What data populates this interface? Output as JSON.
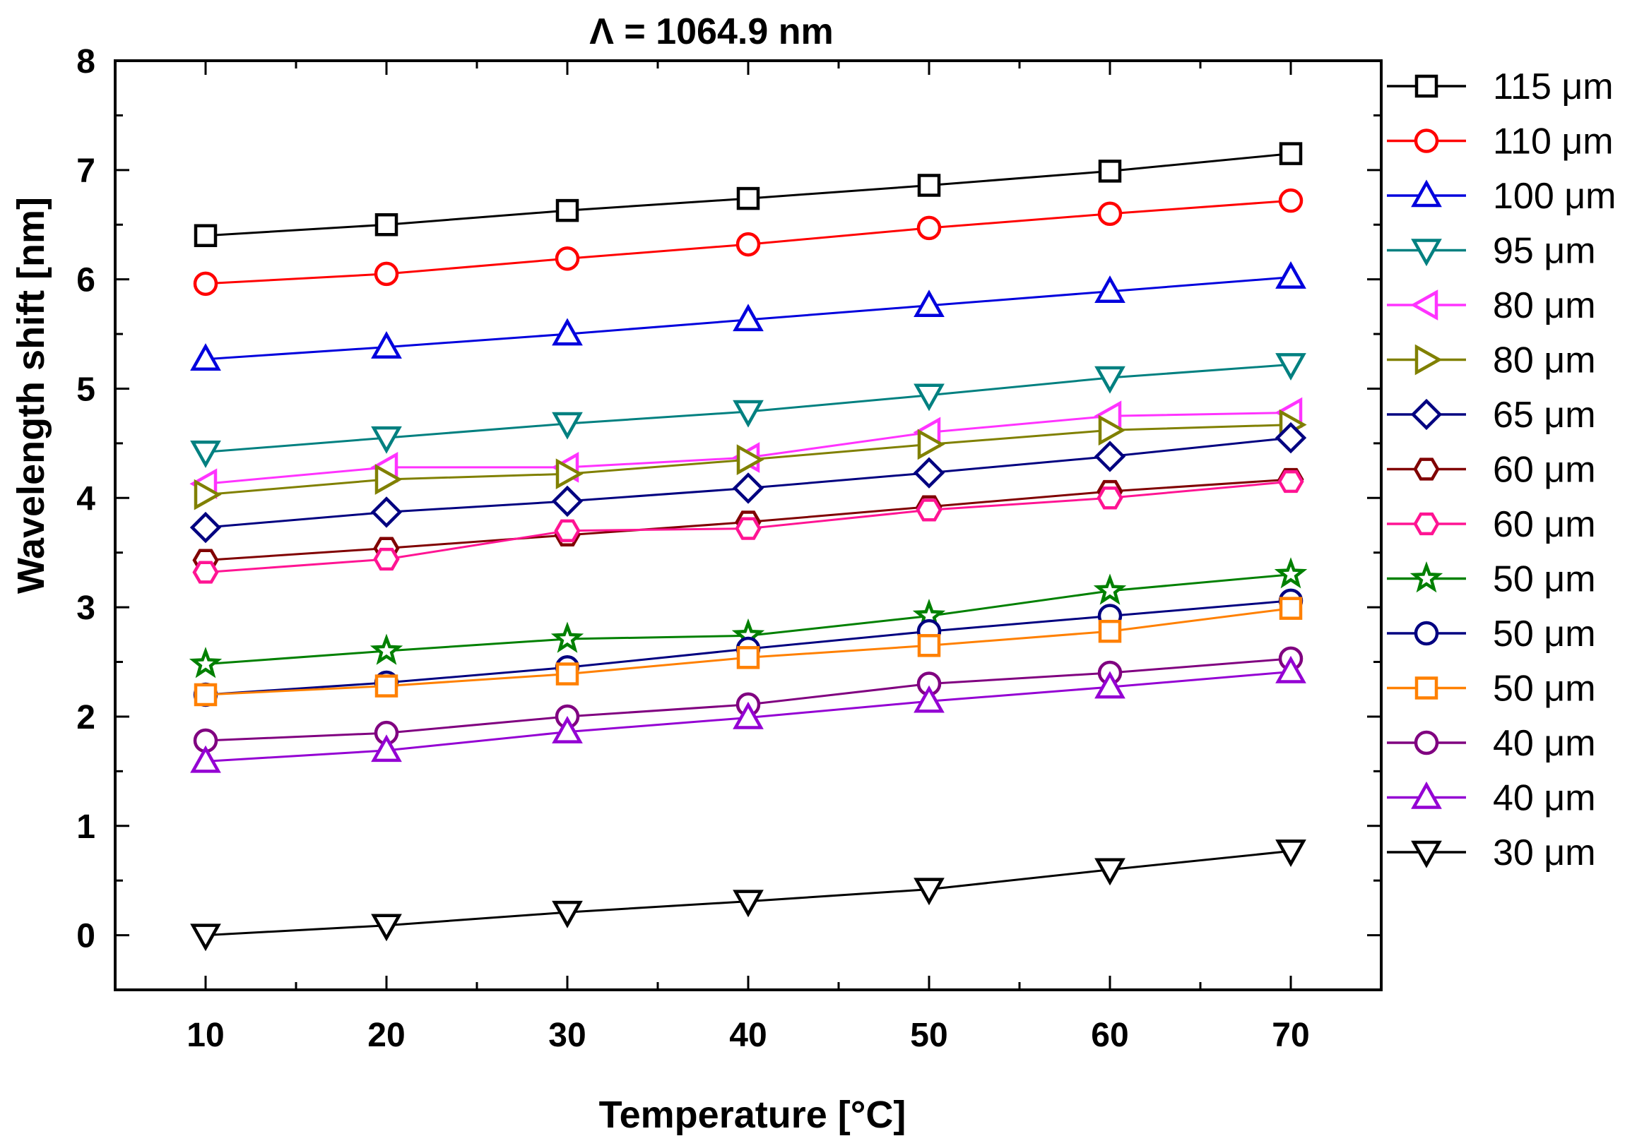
{
  "chart_data": {
    "type": "line",
    "title": "Λ = 1064.9 nm",
    "xlabel": "Temperature [°C]",
    "ylabel": "Wavelength shift [nm]",
    "xlim": [
      5,
      75
    ],
    "ylim": [
      -0.5,
      8
    ],
    "xticks": [
      10,
      20,
      30,
      40,
      50,
      60,
      70
    ],
    "yticks": [
      0,
      1,
      2,
      3,
      4,
      5,
      6,
      7,
      8
    ],
    "grid": false,
    "legend_position": "right",
    "x": [
      10,
      20,
      30,
      40,
      50,
      60,
      70
    ],
    "series": [
      {
        "name": "115 μm",
        "color": "#000000",
        "marker": "square",
        "values": [
          6.4,
          6.5,
          6.63,
          6.74,
          6.86,
          6.99,
          7.15
        ]
      },
      {
        "name": "110 μm",
        "color": "#ff0000",
        "marker": "circle",
        "values": [
          5.96,
          6.05,
          6.19,
          6.32,
          6.47,
          6.6,
          6.72
        ]
      },
      {
        "name": "100 μm",
        "color": "#0000dd",
        "marker": "triangle-up",
        "values": [
          5.27,
          5.38,
          5.5,
          5.63,
          5.76,
          5.89,
          6.02
        ]
      },
      {
        "name": "95 μm",
        "color": "#008080",
        "marker": "triangle-down",
        "values": [
          4.42,
          4.55,
          4.68,
          4.79,
          4.94,
          5.1,
          5.22
        ]
      },
      {
        "name": "80 μm",
        "color": "#ff33ff",
        "marker": "triangle-left",
        "values": [
          4.13,
          4.28,
          4.28,
          4.37,
          4.6,
          4.75,
          4.78
        ]
      },
      {
        "name": "80 μm",
        "color": "#808000",
        "marker": "triangle-right",
        "values": [
          4.03,
          4.17,
          4.22,
          4.35,
          4.49,
          4.62,
          4.67
        ]
      },
      {
        "name": "65 μm",
        "color": "#000080",
        "marker": "diamond",
        "values": [
          3.73,
          3.87,
          3.97,
          4.09,
          4.23,
          4.38,
          4.55
        ]
      },
      {
        "name": "60 μm",
        "color": "#800000",
        "marker": "hexagon",
        "values": [
          3.43,
          3.54,
          3.66,
          3.78,
          3.92,
          4.06,
          4.17
        ]
      },
      {
        "name": "60 μm",
        "color": "#ff1493",
        "marker": "hexagon",
        "values": [
          3.32,
          3.44,
          3.7,
          3.72,
          3.89,
          4.0,
          4.15
        ]
      },
      {
        "name": "50 μm",
        "color": "#008000",
        "marker": "star",
        "values": [
          2.48,
          2.6,
          2.71,
          2.74,
          2.92,
          3.15,
          3.3
        ]
      },
      {
        "name": "50 μm",
        "color": "#000080",
        "marker": "circle",
        "values": [
          2.2,
          2.31,
          2.45,
          2.62,
          2.78,
          2.92,
          3.06
        ]
      },
      {
        "name": "50 μm",
        "color": "#ff8000",
        "marker": "square",
        "values": [
          2.2,
          2.28,
          2.39,
          2.54,
          2.65,
          2.78,
          2.99
        ]
      },
      {
        "name": "40 μm",
        "color": "#800080",
        "marker": "circle",
        "values": [
          1.78,
          1.85,
          2.0,
          2.11,
          2.3,
          2.4,
          2.53
        ]
      },
      {
        "name": "40 μm",
        "color": "#9400d3",
        "marker": "triangle-up",
        "values": [
          1.59,
          1.69,
          1.86,
          1.99,
          2.14,
          2.27,
          2.41
        ]
      },
      {
        "name": "30 μm",
        "color": "#000000",
        "marker": "triangle-down",
        "values": [
          0.0,
          0.09,
          0.21,
          0.31,
          0.42,
          0.6,
          0.77
        ]
      }
    ]
  }
}
